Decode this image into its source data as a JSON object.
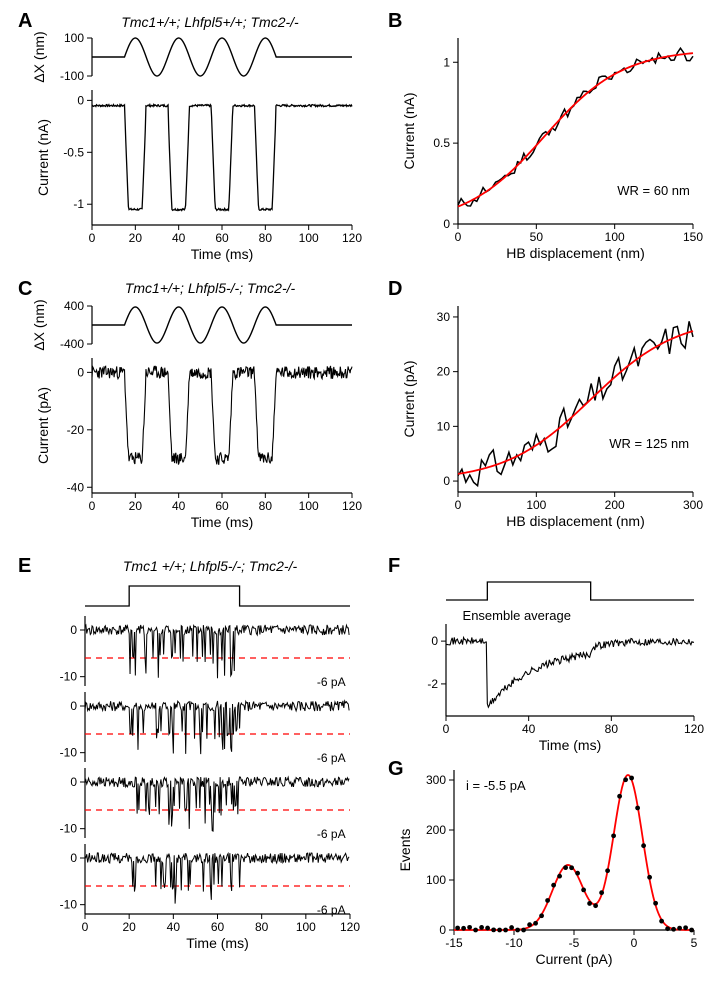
{
  "labels": {
    "A": "A",
    "B": "B",
    "C": "C",
    "D": "D",
    "E": "E",
    "F": "F",
    "G": "G"
  },
  "genotypes": {
    "A": "Tmc1+/+; Lhfpl5+/+; Tmc2-/-",
    "C": "Tmc1+/+; Lhfpl5-/-; Tmc2-/-",
    "E": "Tmc1 +/+; Lhfpl5-/-; Tmc2-/-"
  },
  "colors": {
    "trace": "#000000",
    "fit": "#ff0000",
    "dashed": "#ff0000",
    "axis": "#000000",
    "bg": "#ffffff"
  },
  "A": {
    "stim": {
      "ylabel": "ΔX (nm)",
      "ylim": [
        -100,
        100
      ],
      "yticks": [
        -100,
        100
      ],
      "amp": 100,
      "period": 20,
      "start": 15,
      "end": 85
    },
    "resp": {
      "ylabel": "Current (nA)",
      "ylim": [
        -1.2,
        0.1
      ],
      "yticks": [
        0.0,
        -0.5,
        -1.0
      ],
      "baseline": -0.05,
      "peak": -1.05
    },
    "xlabel": "Time (ms)",
    "xlim": [
      0,
      120
    ],
    "xticks": [
      0,
      20,
      40,
      60,
      80,
      100,
      120
    ]
  },
  "B": {
    "xlabel": "HB displacement (nm)",
    "ylabel": "Current (nA)",
    "xlim": [
      0,
      150
    ],
    "ylim": [
      0,
      1.15
    ],
    "xticks": [
      0,
      50,
      100,
      150
    ],
    "yticks": [
      0,
      0.5,
      1.0
    ],
    "wr_label": "WR = 60 nm",
    "fit": {
      "x50": 55,
      "slope": 25,
      "ymax": 1.08
    }
  },
  "C": {
    "stim": {
      "ylabel": "ΔX (nm)",
      "ylim": [
        -400,
        400
      ],
      "yticks": [
        -400,
        400
      ],
      "amp": 380,
      "period": 20,
      "start": 15,
      "end": 85
    },
    "resp": {
      "ylabel": "Current (pA)",
      "ylim": [
        -42,
        5
      ],
      "yticks": [
        0,
        -20,
        -40
      ],
      "baseline": 0,
      "peak": -30
    },
    "xlabel": "Time (ms)",
    "xlim": [
      0,
      120
    ],
    "xticks": [
      0,
      20,
      40,
      60,
      80,
      100,
      120
    ]
  },
  "D": {
    "xlabel": "HB displacement (nm)",
    "ylabel": "Current (pA)",
    "xlim": [
      0,
      300
    ],
    "ylim": [
      -2,
      32
    ],
    "xticks": [
      0,
      100,
      200,
      300
    ],
    "yticks": [
      0,
      10,
      20,
      30
    ],
    "wr_label": "WR = 125 nm",
    "fit": {
      "x50": 170,
      "slope": 55,
      "ymax": 30
    }
  },
  "E": {
    "xlabel": "Time (ms)",
    "xlim": [
      0,
      120
    ],
    "xticks": [
      0,
      20,
      40,
      60,
      80,
      100,
      120
    ],
    "traces": [
      {
        "ylim": [
          -12,
          3
        ],
        "yticks": [
          0,
          -10
        ],
        "dash": -6,
        "label": "-6 pA"
      },
      {
        "ylim": [
          -12,
          3
        ],
        "yticks": [
          0,
          -10
        ],
        "dash": -6,
        "label": "-6 pA"
      },
      {
        "ylim": [
          -12,
          3
        ],
        "yticks": [
          0,
          -10
        ],
        "dash": -6,
        "label": "-6 pA"
      },
      {
        "ylim": [
          -12,
          3
        ],
        "yticks": [
          0,
          -10
        ],
        "dash": -6,
        "label": "-6 pA"
      }
    ],
    "step": {
      "start": 20,
      "end": 70
    }
  },
  "F": {
    "label": "Ensemble average",
    "xlabel": "Time (ms)",
    "xlim": [
      0,
      120
    ],
    "xticks": [
      0,
      40,
      80,
      120
    ],
    "ylim": [
      -3.5,
      0.8
    ],
    "yticks": [
      0,
      -2
    ],
    "step": {
      "start": 20,
      "end": 70
    }
  },
  "G": {
    "xlabel": "Current (pA)",
    "ylabel": "Events",
    "xlim": [
      -15,
      5
    ],
    "ylim": [
      0,
      320
    ],
    "xticks": [
      -15,
      -10,
      -5,
      0,
      5
    ],
    "yticks": [
      0,
      100,
      200,
      300
    ],
    "i_label": "i = -5.5 pA",
    "peaks": [
      {
        "mu": -5.5,
        "sigma": 1.3,
        "amp": 130
      },
      {
        "mu": -0.5,
        "sigma": 1.2,
        "amp": 310
      }
    ]
  }
}
